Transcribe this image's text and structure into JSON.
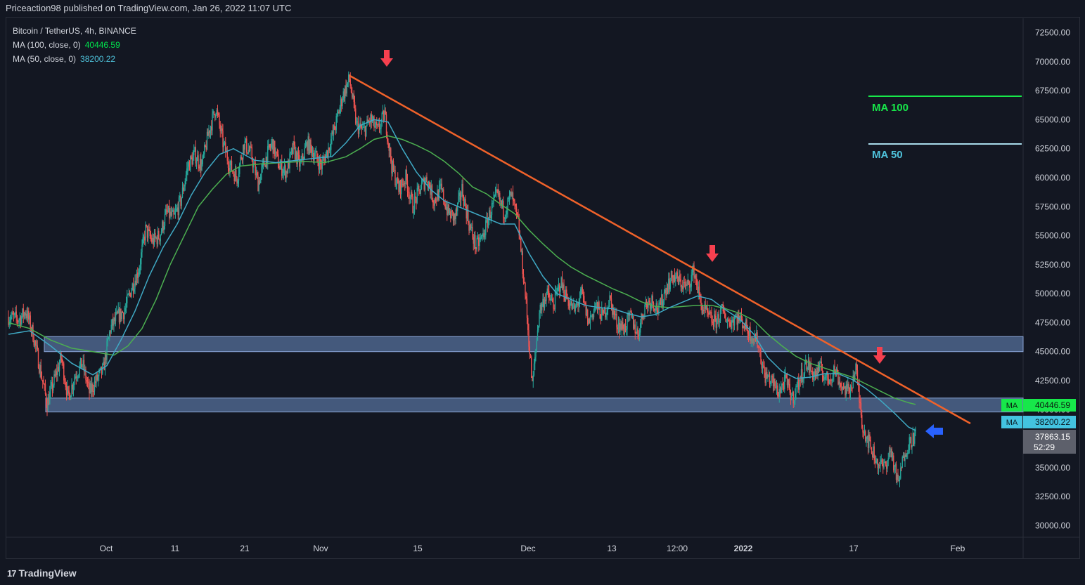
{
  "header": {
    "published_text": "Priceaction98 published on TradingView.com, Jan 26, 2022 11:07 UTC"
  },
  "legend": {
    "symbol": "Bitcoin / TetherUS, 4h, BINANCE",
    "ma100_label": "MA (100, close, 0)",
    "ma100_value": "40446.59",
    "ma50_label": "MA (50, close, 0)",
    "ma50_value": "38200.22"
  },
  "footer": {
    "brand": "TradingView",
    "logo_glyph": "17"
  },
  "chart_data": {
    "type": "candlestick",
    "ylim": [
      29000,
      73500
    ],
    "y_ticks": [
      "72500.00",
      "70000.00",
      "67500.00",
      "65000.00",
      "62500.00",
      "60000.00",
      "57500.00",
      "55000.00",
      "52500.00",
      "50000.00",
      "47500.00",
      "45000.00",
      "42500.00",
      "40000.00",
      "37500.00",
      "35000.00",
      "32500.00",
      "30000.00"
    ],
    "x_ticks": [
      {
        "label": "Oct",
        "bold": false
      },
      {
        "label": "11",
        "bold": false
      },
      {
        "label": "21",
        "bold": false
      },
      {
        "label": "Nov",
        "bold": false
      },
      {
        "label": "15",
        "bold": false
      },
      {
        "label": "Dec",
        "bold": false
      },
      {
        "label": "13",
        "bold": false
      },
      {
        "label": "12:00",
        "bold": false
      },
      {
        "label": "2022",
        "bold": true
      },
      {
        "label": "17",
        "bold": false
      },
      {
        "label": "Feb",
        "bold": false
      }
    ],
    "price_path": [
      [
        0,
        48000
      ],
      [
        3,
        47800
      ],
      [
        5,
        48500
      ],
      [
        7,
        46500
      ],
      [
        9,
        43500
      ],
      [
        11,
        40500
      ],
      [
        13,
        42500
      ],
      [
        15,
        44500
      ],
      [
        17,
        41000
      ],
      [
        19,
        43000
      ],
      [
        21,
        44000
      ],
      [
        23,
        41500
      ],
      [
        25,
        42500
      ],
      [
        27,
        43500
      ],
      [
        29,
        47000
      ],
      [
        31,
        48000
      ],
      [
        33,
        48500
      ],
      [
        35,
        50500
      ],
      [
        37,
        52000
      ],
      [
        39,
        55500
      ],
      [
        41,
        54500
      ],
      [
        43,
        55000
      ],
      [
        45,
        57000
      ],
      [
        47,
        56500
      ],
      [
        49,
        58000
      ],
      [
        51,
        61000
      ],
      [
        53,
        62000
      ],
      [
        55,
        61000
      ],
      [
        57,
        64000
      ],
      [
        59,
        66000
      ],
      [
        61,
        63000
      ],
      [
        63,
        61000
      ],
      [
        65,
        60000
      ],
      [
        67,
        63000
      ],
      [
        69,
        62000
      ],
      [
        71,
        59500
      ],
      [
        73,
        61500
      ],
      [
        75,
        63000
      ],
      [
        77,
        61000
      ],
      [
        79,
        60500
      ],
      [
        81,
        62500
      ],
      [
        83,
        61000
      ],
      [
        85,
        63000
      ],
      [
        87,
        62000
      ],
      [
        89,
        61000
      ],
      [
        91,
        62500
      ],
      [
        93,
        64500
      ],
      [
        95,
        67000
      ],
      [
        97,
        68500
      ],
      [
        99,
        64500
      ],
      [
        101,
        64000
      ],
      [
        103,
        65000
      ],
      [
        105,
        64000
      ],
      [
        107,
        65500
      ],
      [
        109,
        61000
      ],
      [
        111,
        59000
      ],
      [
        113,
        60000
      ],
      [
        115,
        57500
      ],
      [
        117,
        59000
      ],
      [
        119,
        60000
      ],
      [
        121,
        58000
      ],
      [
        123,
        59000
      ],
      [
        125,
        57000
      ],
      [
        127,
        56500
      ],
      [
        129,
        59000
      ],
      [
        131,
        56000
      ],
      [
        133,
        54000
      ],
      [
        135,
        55000
      ],
      [
        137,
        57000
      ],
      [
        139,
        58500
      ],
      [
        141,
        57000
      ],
      [
        143,
        58500
      ],
      [
        145,
        56000
      ],
      [
        147,
        50000
      ],
      [
        149,
        42000
      ],
      [
        151,
        48500
      ],
      [
        153,
        50000
      ],
      [
        155,
        49000
      ],
      [
        157,
        51000
      ],
      [
        159,
        49500
      ],
      [
        161,
        48500
      ],
      [
        163,
        50000
      ],
      [
        165,
        47500
      ],
      [
        167,
        49000
      ],
      [
        169,
        48000
      ],
      [
        171,
        49500
      ],
      [
        173,
        47500
      ],
      [
        175,
        47000
      ],
      [
        177,
        48000
      ],
      [
        179,
        46500
      ],
      [
        181,
        49000
      ],
      [
        183,
        49500
      ],
      [
        185,
        48500
      ],
      [
        187,
        50500
      ],
      [
        189,
        51500
      ],
      [
        191,
        51000
      ],
      [
        193,
        50500
      ],
      [
        195,
        52000
      ],
      [
        197,
        49000
      ],
      [
        199,
        48000
      ],
      [
        201,
        47500
      ],
      [
        203,
        48500
      ],
      [
        205,
        47500
      ],
      [
        207,
        48000
      ],
      [
        209,
        47500
      ],
      [
        211,
        46500
      ],
      [
        213,
        46000
      ],
      [
        215,
        43000
      ],
      [
        217,
        42500
      ],
      [
        219,
        41500
      ],
      [
        221,
        42500
      ],
      [
        223,
        41000
      ],
      [
        225,
        42500
      ],
      [
        227,
        44000
      ],
      [
        229,
        43000
      ],
      [
        231,
        43500
      ],
      [
        233,
        42500
      ],
      [
        235,
        43500
      ],
      [
        237,
        42000
      ],
      [
        239,
        41500
      ],
      [
        241,
        43500
      ],
      [
        243,
        38500
      ],
      [
        245,
        37000
      ],
      [
        247,
        35500
      ],
      [
        249,
        35000
      ],
      [
        251,
        36500
      ],
      [
        253,
        33500
      ],
      [
        255,
        36500
      ],
      [
        257,
        37500
      ],
      [
        258,
        37863
      ]
    ],
    "ma50_path": [
      [
        0,
        46500
      ],
      [
        6,
        46800
      ],
      [
        12,
        45500
      ],
      [
        18,
        44000
      ],
      [
        24,
        43000
      ],
      [
        28,
        43800
      ],
      [
        32,
        46000
      ],
      [
        36,
        48500
      ],
      [
        40,
        51500
      ],
      [
        44,
        54000
      ],
      [
        48,
        56000
      ],
      [
        52,
        58500
      ],
      [
        56,
        60500
      ],
      [
        60,
        62000
      ],
      [
        64,
        62500
      ],
      [
        70,
        61500
      ],
      [
        76,
        61300
      ],
      [
        82,
        61500
      ],
      [
        88,
        61700
      ],
      [
        92,
        61800
      ],
      [
        96,
        63000
      ],
      [
        100,
        64500
      ],
      [
        104,
        65000
      ],
      [
        108,
        64800
      ],
      [
        112,
        62500
      ],
      [
        116,
        60500
      ],
      [
        120,
        59000
      ],
      [
        124,
        58000
      ],
      [
        128,
        57500
      ],
      [
        132,
        57000
      ],
      [
        136,
        56500
      ],
      [
        140,
        56000
      ],
      [
        144,
        56000
      ],
      [
        148,
        53500
      ],
      [
        152,
        51500
      ],
      [
        156,
        50000
      ],
      [
        160,
        49500
      ],
      [
        164,
        49000
      ],
      [
        168,
        48800
      ],
      [
        172,
        48700
      ],
      [
        176,
        48300
      ],
      [
        180,
        48000
      ],
      [
        184,
        48200
      ],
      [
        188,
        48800
      ],
      [
        192,
        49300
      ],
      [
        196,
        49800
      ],
      [
        200,
        49500
      ],
      [
        204,
        48600
      ],
      [
        208,
        47800
      ],
      [
        212,
        46500
      ],
      [
        216,
        44500
      ],
      [
        220,
        43300
      ],
      [
        224,
        42700
      ],
      [
        228,
        42800
      ],
      [
        232,
        43100
      ],
      [
        236,
        43100
      ],
      [
        240,
        42600
      ],
      [
        244,
        41800
      ],
      [
        248,
        40800
      ],
      [
        252,
        39700
      ],
      [
        256,
        38500
      ],
      [
        258,
        38200
      ]
    ],
    "ma100_path": [
      [
        0,
        47500
      ],
      [
        6,
        47000
      ],
      [
        12,
        46000
      ],
      [
        18,
        45300
      ],
      [
        24,
        45000
      ],
      [
        30,
        44700
      ],
      [
        34,
        45500
      ],
      [
        38,
        47000
      ],
      [
        42,
        49500
      ],
      [
        46,
        52500
      ],
      [
        50,
        55000
      ],
      [
        54,
        57500
      ],
      [
        58,
        59000
      ],
      [
        62,
        60300
      ],
      [
        66,
        61000
      ],
      [
        72,
        61200
      ],
      [
        78,
        61300
      ],
      [
        84,
        61400
      ],
      [
        90,
        61300
      ],
      [
        96,
        61800
      ],
      [
        100,
        62500
      ],
      [
        104,
        63300
      ],
      [
        108,
        63600
      ],
      [
        112,
        63300
      ],
      [
        116,
        62800
      ],
      [
        120,
        62200
      ],
      [
        124,
        61400
      ],
      [
        128,
        60400
      ],
      [
        132,
        59200
      ],
      [
        136,
        58600
      ],
      [
        140,
        57700
      ],
      [
        144,
        56900
      ],
      [
        148,
        55500
      ],
      [
        152,
        54300
      ],
      [
        156,
        53200
      ],
      [
        160,
        52300
      ],
      [
        164,
        51600
      ],
      [
        168,
        51000
      ],
      [
        172,
        50400
      ],
      [
        176,
        49900
      ],
      [
        180,
        49300
      ],
      [
        184,
        48900
      ],
      [
        188,
        48800
      ],
      [
        192,
        48900
      ],
      [
        196,
        49000
      ],
      [
        200,
        49000
      ],
      [
        204,
        48700
      ],
      [
        208,
        48300
      ],
      [
        212,
        47700
      ],
      [
        216,
        46500
      ],
      [
        220,
        45500
      ],
      [
        224,
        44600
      ],
      [
        228,
        44000
      ],
      [
        232,
        43600
      ],
      [
        236,
        43200
      ],
      [
        240,
        42800
      ],
      [
        244,
        42200
      ],
      [
        248,
        41600
      ],
      [
        252,
        41000
      ],
      [
        256,
        40600
      ],
      [
        258,
        40446
      ]
    ],
    "trendline": [
      [
        97,
        68800
      ],
      [
        258,
        38700
      ]
    ],
    "support_zones": [
      [
        45000,
        46300
      ],
      [
        39800,
        41000
      ]
    ],
    "annotation_labels": {
      "ma100": "MA 100",
      "ma50": "MA 50"
    },
    "price_tags": {
      "ma_tag": "MA",
      "ma100_value": "40446.59",
      "ma50_value": "38200.22",
      "last_price": "37863.15",
      "countdown": "52:29"
    },
    "colors": {
      "background": "#131722",
      "up": "#26a69a",
      "down": "#ef5350",
      "ma100": "#4caf50",
      "ma50": "#3fa9c4",
      "trendline": "#f0622a",
      "zone": "#6d8fc7",
      "red_arrow": "#f6404f",
      "blue_arrow": "#2962ff",
      "ma100_label": "#17e74a",
      "ma50_label": "#4fc3dc"
    }
  }
}
